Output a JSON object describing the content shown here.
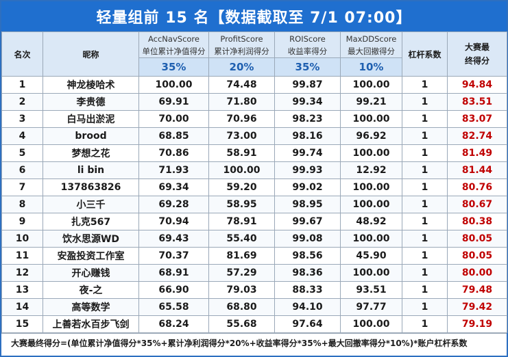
{
  "title": "轻量组前 15 名【数据截取至 7/1 07:00】",
  "headers": {
    "rank": "名次",
    "nickname": "昵称",
    "metrics": [
      {
        "en": "AccNavScore",
        "cn": "单位累计净值得分",
        "weight": "35%"
      },
      {
        "en": "ProfitScore",
        "cn": "累计净利润得分",
        "weight": "20%"
      },
      {
        "en": "ROIScore",
        "cn": "收益率得分",
        "weight": "35%"
      },
      {
        "en": "MaxDDScore",
        "cn": "最大回撤得分",
        "weight": "10%"
      }
    ],
    "leverage": "杠杆系数",
    "final_line1": "大赛最",
    "final_line2": "终得分"
  },
  "rows": [
    {
      "rank": "1",
      "name": "神龙棱哈术",
      "acc": "100.00",
      "profit": "74.48",
      "roi": "99.87",
      "maxdd": "100.00",
      "lev": "1",
      "final": "94.84"
    },
    {
      "rank": "2",
      "name": "李贵德",
      "acc": "69.91",
      "profit": "71.80",
      "roi": "99.34",
      "maxdd": "99.21",
      "lev": "1",
      "final": "83.51"
    },
    {
      "rank": "3",
      "name": "白马出淤泥",
      "acc": "70.00",
      "profit": "70.96",
      "roi": "98.23",
      "maxdd": "100.00",
      "lev": "1",
      "final": "83.07"
    },
    {
      "rank": "4",
      "name": "brood",
      "acc": "68.85",
      "profit": "73.00",
      "roi": "98.16",
      "maxdd": "96.92",
      "lev": "1",
      "final": "82.74"
    },
    {
      "rank": "5",
      "name": "梦想之花",
      "acc": "70.86",
      "profit": "58.91",
      "roi": "99.74",
      "maxdd": "100.00",
      "lev": "1",
      "final": "81.49"
    },
    {
      "rank": "6",
      "name": "li bin",
      "acc": "71.93",
      "profit": "100.00",
      "roi": "99.93",
      "maxdd": "12.92",
      "lev": "1",
      "final": "81.44"
    },
    {
      "rank": "7",
      "name": "137863826",
      "acc": "69.34",
      "profit": "59.20",
      "roi": "99.02",
      "maxdd": "100.00",
      "lev": "1",
      "final": "80.76"
    },
    {
      "rank": "8",
      "name": "小三千",
      "acc": "69.28",
      "profit": "58.95",
      "roi": "98.95",
      "maxdd": "100.00",
      "lev": "1",
      "final": "80.67"
    },
    {
      "rank": "9",
      "name": "扎克567",
      "acc": "70.94",
      "profit": "78.91",
      "roi": "99.67",
      "maxdd": "48.92",
      "lev": "1",
      "final": "80.38"
    },
    {
      "rank": "10",
      "name": "饮水思源WD",
      "acc": "69.43",
      "profit": "55.40",
      "roi": "99.08",
      "maxdd": "100.00",
      "lev": "1",
      "final": "80.05"
    },
    {
      "rank": "11",
      "name": "安盈投资工作室",
      "acc": "70.37",
      "profit": "81.69",
      "roi": "98.56",
      "maxdd": "45.90",
      "lev": "1",
      "final": "80.05"
    },
    {
      "rank": "12",
      "name": "开心赚钱",
      "acc": "68.91",
      "profit": "57.29",
      "roi": "98.36",
      "maxdd": "100.00",
      "lev": "1",
      "final": "80.00"
    },
    {
      "rank": "13",
      "name": "夜-之",
      "acc": "66.90",
      "profit": "79.03",
      "roi": "88.33",
      "maxdd": "93.51",
      "lev": "1",
      "final": "79.48"
    },
    {
      "rank": "14",
      "name": "高等数学",
      "acc": "65.58",
      "profit": "68.80",
      "roi": "94.10",
      "maxdd": "97.77",
      "lev": "1",
      "final": "79.42"
    },
    {
      "rank": "15",
      "name": "上善若水百步飞剑",
      "acc": "68.24",
      "profit": "55.68",
      "roi": "97.64",
      "maxdd": "100.00",
      "lev": "1",
      "final": "79.19"
    }
  ],
  "footer": "大赛最终得分=(单位累计净值得分*35%+累计净利润得分*20%+收益率得分*35%+最大回撤率得分*10%)*账户杠杆系数",
  "colors": {
    "title_bg": "#1f6fcf",
    "header_bg": "#dbe8f6",
    "weight_text": "#1e5fb0",
    "final_text": "#c00000",
    "border": "#9aa8b8"
  }
}
